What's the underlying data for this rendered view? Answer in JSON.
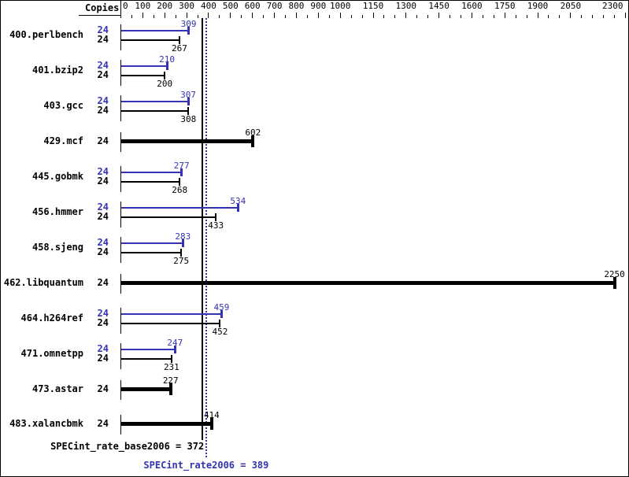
{
  "chart_data": {
    "type": "bar",
    "orientation": "horizontal",
    "copies_header": "Copies",
    "axis": {
      "min": 0,
      "max": 2300,
      "major_ticks": [
        0,
        100,
        200,
        300,
        400,
        500,
        600,
        700,
        800,
        900,
        1000,
        1150,
        1300,
        1450,
        1600,
        1750,
        1900,
        2050,
        2300
      ],
      "minor_tick_step": 50
    },
    "benchmarks": [
      {
        "name": "400.perlbench",
        "copies": 24,
        "peak": 309,
        "base": 267
      },
      {
        "name": "401.bzip2",
        "copies": 24,
        "peak": 210,
        "base": 200
      },
      {
        "name": "403.gcc",
        "copies": 24,
        "peak": 307,
        "base": 308
      },
      {
        "name": "429.mcf",
        "copies": 24,
        "single": 602
      },
      {
        "name": "445.gobmk",
        "copies": 24,
        "peak": 277,
        "base": 268
      },
      {
        "name": "456.hmmer",
        "copies": 24,
        "peak": 534,
        "base": 433
      },
      {
        "name": "458.sjeng",
        "copies": 24,
        "peak": 283,
        "base": 275
      },
      {
        "name": "462.libquantum",
        "copies": 24,
        "single": 2250
      },
      {
        "name": "464.h264ref",
        "copies": 24,
        "peak": 459,
        "base": 452
      },
      {
        "name": "471.omnetpp",
        "copies": 24,
        "peak": 247,
        "base": 231
      },
      {
        "name": "473.astar",
        "copies": 24,
        "single": 227
      },
      {
        "name": "483.xalancbmk",
        "copies": 24,
        "single": 414
      }
    ],
    "summary": {
      "base_label": "SPECint_rate_base2006 = 372",
      "base_value": 372,
      "peak_label": "SPECint_rate2006 = 389",
      "peak_value": 389
    },
    "colors": {
      "peak_blue": "#3333b4",
      "base_black": "#000000"
    }
  }
}
